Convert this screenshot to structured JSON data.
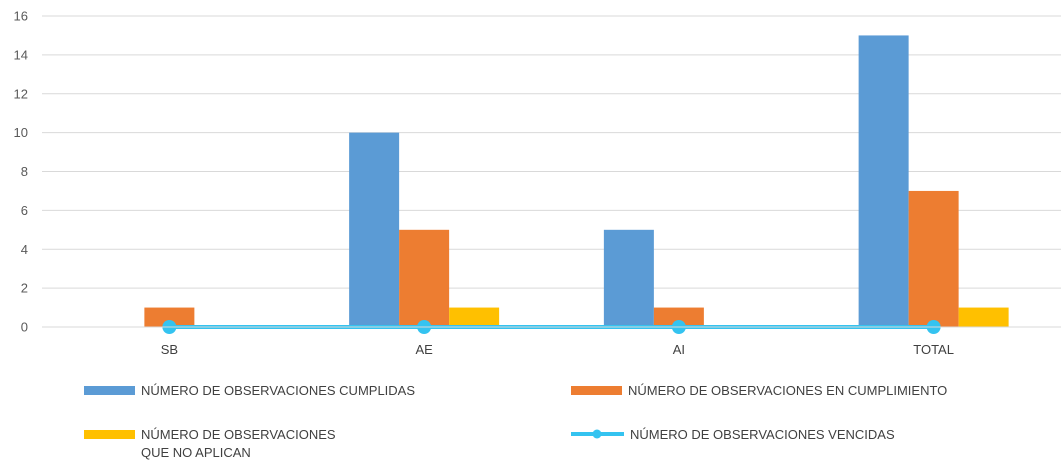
{
  "chart_data": {
    "type": "bar",
    "title": "",
    "xlabel": "",
    "ylabel": "",
    "categories": [
      "SB",
      "AE",
      "AI",
      "TOTAL"
    ],
    "ylim": [
      0,
      16
    ],
    "yticks": [
      0,
      2,
      4,
      6,
      8,
      10,
      12,
      14,
      16
    ],
    "grid": true,
    "legend_position": "bottom",
    "series": [
      {
        "name": "NÚMERO DE OBSERVACIONES CUMPLIDAS",
        "kind": "bar",
        "color": "#5B9BD5",
        "values": [
          0,
          10,
          5,
          15
        ]
      },
      {
        "name": "NÚMERO DE OBSERVACIONES EN CUMPLIMIENTO",
        "kind": "bar",
        "color": "#ED7D31",
        "values": [
          1,
          5,
          1,
          7
        ]
      },
      {
        "name_lines": [
          "NÚMERO DE OBSERVACIONES",
          "QUE NO APLICAN"
        ],
        "kind": "bar",
        "color": "#FFC000",
        "values": [
          0,
          1,
          0,
          1
        ]
      },
      {
        "name": "NÚMERO DE OBSERVACIONES VENCIDAS",
        "kind": "line",
        "color": "#34C3F0",
        "values": [
          0,
          0,
          0,
          0
        ]
      }
    ]
  }
}
